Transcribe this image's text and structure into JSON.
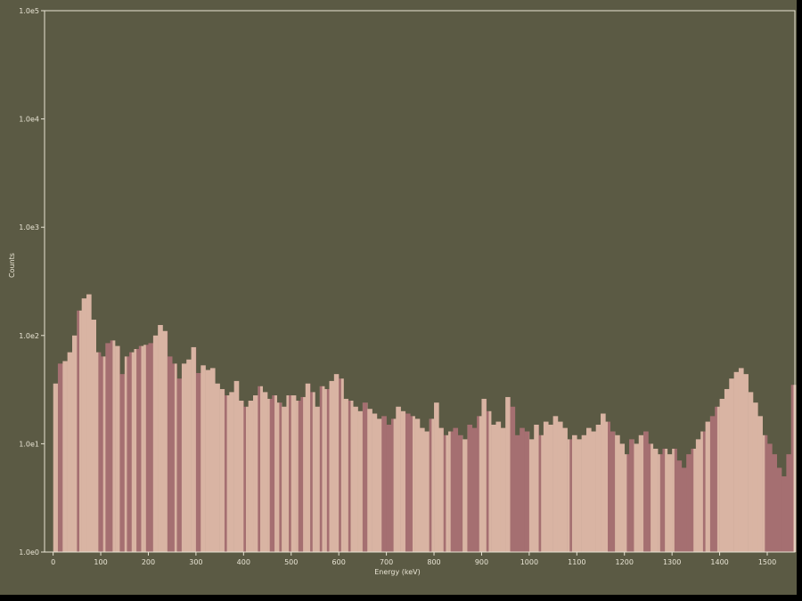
{
  "chart_data": {
    "type": "bar",
    "title": "",
    "xlabel": "Energy (keV)",
    "ylabel": "Counts",
    "xlim": [
      -18,
      1558
    ],
    "ylim": [
      1,
      100000
    ],
    "yscale": "log",
    "grid": false,
    "x_ticks": [
      "0",
      "100",
      "200",
      "300",
      "400",
      "500",
      "600",
      "700",
      "800",
      "900",
      "1000",
      "1100",
      "1200",
      "1300",
      "1400",
      "1500"
    ],
    "y_ticks": [
      "1.0e0",
      "1.0e1",
      "1.0e2",
      "1.0e3",
      "1.0e4",
      "1.0e5"
    ],
    "bin_width_keV": 10,
    "x": [
      0,
      10,
      20,
      30,
      40,
      50,
      60,
      70,
      80,
      90,
      100,
      110,
      120,
      130,
      140,
      150,
      160,
      170,
      180,
      190,
      200,
      210,
      220,
      230,
      240,
      250,
      260,
      270,
      280,
      290,
      300,
      310,
      320,
      330,
      340,
      350,
      360,
      370,
      380,
      390,
      400,
      410,
      420,
      430,
      440,
      450,
      460,
      470,
      480,
      490,
      500,
      510,
      520,
      530,
      540,
      550,
      560,
      570,
      580,
      590,
      600,
      610,
      620,
      630,
      640,
      650,
      660,
      670,
      680,
      690,
      700,
      710,
      720,
      730,
      740,
      750,
      760,
      770,
      780,
      790,
      800,
      810,
      820,
      830,
      840,
      850,
      860,
      870,
      880,
      890,
      900,
      910,
      920,
      930,
      940,
      950,
      960,
      970,
      980,
      990,
      1000,
      1010,
      1020,
      1030,
      1040,
      1050,
      1060,
      1070,
      1080,
      1090,
      1100,
      1110,
      1120,
      1130,
      1140,
      1150,
      1160,
      1170,
      1180,
      1190,
      1200,
      1210,
      1220,
      1230,
      1240,
      1250,
      1260,
      1270,
      1280,
      1290,
      1300,
      1310,
      1320,
      1330,
      1340,
      1350,
      1360,
      1370,
      1380,
      1390,
      1400,
      1410,
      1420,
      1430,
      1440,
      1450,
      1460,
      1470,
      1480,
      1490,
      1500,
      1510,
      1520,
      1530,
      1540,
      1550
    ],
    "values": [
      36,
      55,
      58,
      70,
      100,
      170,
      220,
      240,
      140,
      70,
      64,
      85,
      90,
      80,
      44,
      64,
      70,
      75,
      80,
      82,
      85,
      100,
      125,
      110,
      64,
      55,
      40,
      55,
      60,
      78,
      45,
      53,
      48,
      50,
      36,
      32,
      28,
      30,
      38,
      25,
      22,
      25,
      28,
      34,
      30,
      26,
      28,
      24,
      22,
      28,
      28,
      25,
      27,
      36,
      30,
      22,
      34,
      32,
      38,
      44,
      40,
      26,
      25,
      22,
      20,
      24,
      21,
      19,
      17,
      18,
      15,
      17,
      22,
      20,
      19,
      18,
      17,
      14,
      13,
      17,
      24,
      14,
      12,
      13,
      14,
      12,
      11,
      15,
      14,
      18,
      26,
      20,
      15,
      16,
      14,
      27,
      22,
      12,
      14,
      13,
      11,
      15,
      12,
      16,
      15,
      18,
      16,
      14,
      11,
      12,
      11,
      12,
      14,
      13,
      15,
      19,
      16,
      13,
      12,
      10,
      8,
      11,
      10,
      12,
      13,
      10,
      9,
      8,
      9,
      8,
      9,
      7,
      6,
      8,
      9,
      11,
      13,
      16,
      18,
      22,
      26,
      32,
      40,
      46,
      50,
      44,
      30,
      24,
      18,
      12,
      10,
      8,
      6,
      5,
      8,
      35
    ],
    "dark_ranges_keV": [
      [
        10,
        20
      ],
      [
        50,
        55
      ],
      [
        95,
        105
      ],
      [
        110,
        125
      ],
      [
        140,
        150
      ],
      [
        155,
        165
      ],
      [
        175,
        185
      ],
      [
        195,
        210
      ],
      [
        240,
        255
      ],
      [
        260,
        270
      ],
      [
        300,
        310
      ],
      [
        360,
        365
      ],
      [
        400,
        405
      ],
      [
        430,
        435
      ],
      [
        455,
        465
      ],
      [
        475,
        480
      ],
      [
        495,
        500
      ],
      [
        515,
        525
      ],
      [
        540,
        545
      ],
      [
        560,
        565
      ],
      [
        575,
        580
      ],
      [
        600,
        605
      ],
      [
        620,
        625
      ],
      [
        650,
        660
      ],
      [
        690,
        715
      ],
      [
        740,
        755
      ],
      [
        790,
        795
      ],
      [
        820,
        825
      ],
      [
        835,
        860
      ],
      [
        870,
        895
      ],
      [
        910,
        915
      ],
      [
        960,
        1000
      ],
      [
        1020,
        1025
      ],
      [
        1085,
        1090
      ],
      [
        1165,
        1180
      ],
      [
        1205,
        1220
      ],
      [
        1240,
        1255
      ],
      [
        1275,
        1285
      ],
      [
        1305,
        1345
      ],
      [
        1365,
        1370
      ],
      [
        1380,
        1395
      ],
      [
        1495,
        1555
      ]
    ],
    "colors": {
      "background": "#5b5a44",
      "light_fill": "#d9b4a3",
      "dark_fill": "#a56f71",
      "axis": "#e8e4d4"
    }
  }
}
